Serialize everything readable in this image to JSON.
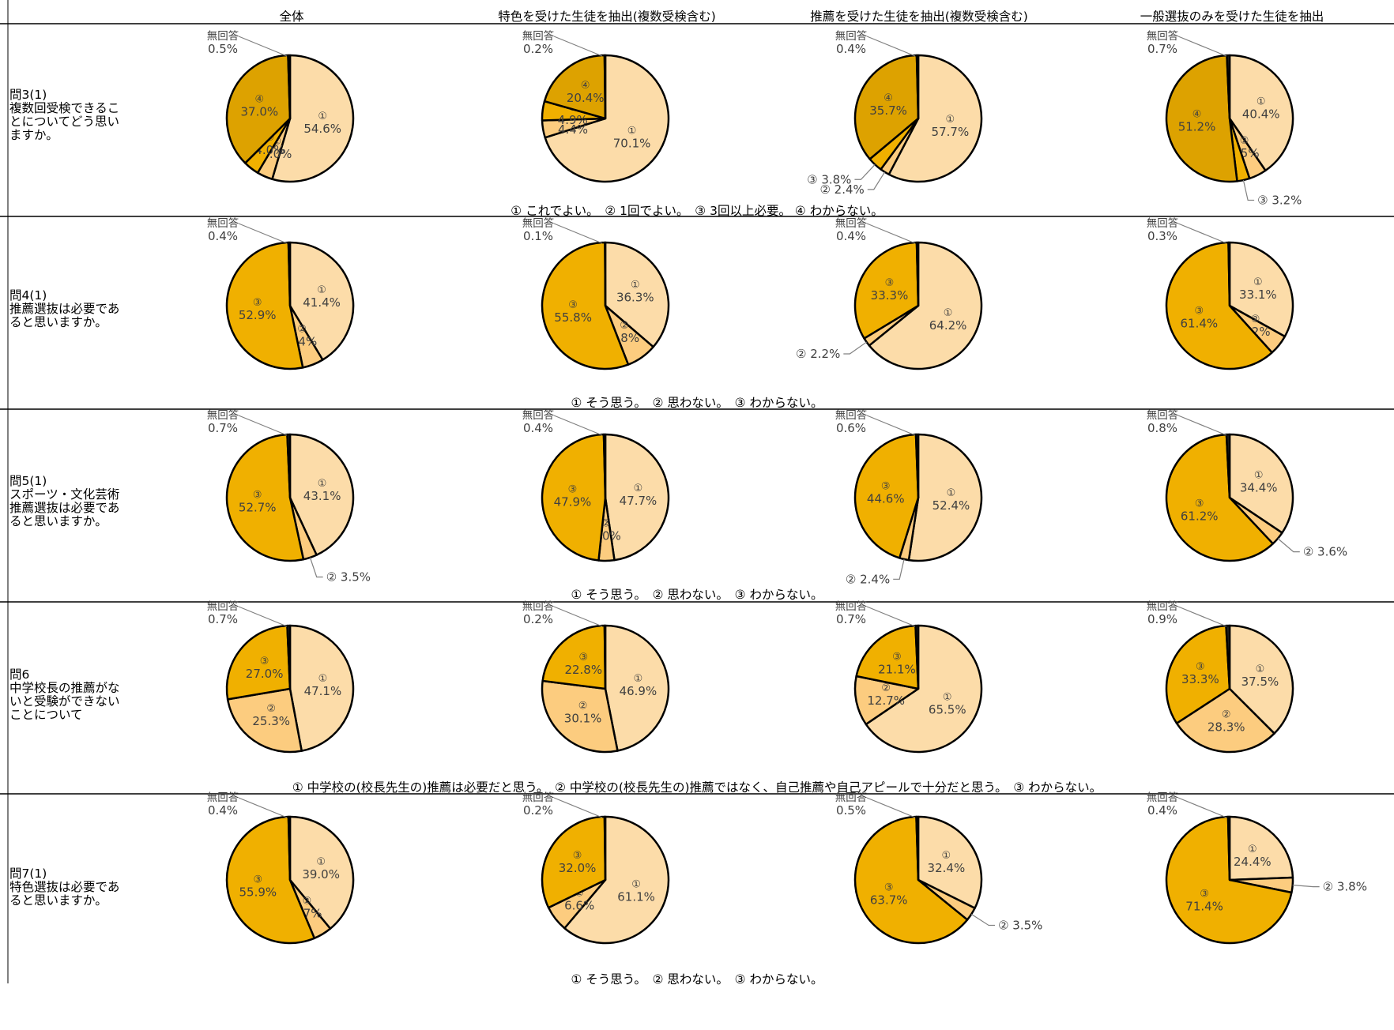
{
  "colors": {
    "opt1": "#FCDCA9",
    "opt2": "#FCCC7F",
    "opt3": "#F0B000",
    "opt4": "#DDA200",
    "noanswer": "#222222"
  },
  "column_headers": [
    "全体",
    "特色を受けた生徒を抽出(複数受検含む)",
    "推薦を受けた生徒を抽出(複数受検含む)",
    "一般選抜のみを受けた生徒を抽出"
  ],
  "rows": [
    {
      "label": "問3(1)\n複数回受検できるこ\nとについてどう思い\nますか。",
      "legend": "① これでよい。　② 1回でよい。　③ 3回以上必要。 ④ わからない。"
    },
    {
      "label": "問4(1)\n推薦選抜は必要であ\nると思いますか。",
      "legend": "① そう思う。　② 思わない。　③ わからない。"
    },
    {
      "label": "問5(1)\nスポーツ・文化芸術\n推薦選抜は必要であ\nると思いますか。",
      "legend": "① そう思う。　② 思わない。　③ わからない。"
    },
    {
      "label": "問6\n中学校長の推薦がな\nいと受験ができない\nことについて",
      "legend": "① 中学校の(校長先生の)推薦は必要だと思う。　② 中学校の(校長先生の)推薦ではなく、自己推薦や自己アピールで十分だと思う。　③ わからない。"
    },
    {
      "label": "問7(1)\n特色選抜は必要であ\nると思いますか。",
      "legend": "① そう思う。　② 思わない。　③ わからない。"
    }
  ],
  "chart_data": [
    {
      "type": "pie",
      "question": "問3(1)",
      "group": "全体",
      "categories": [
        "①",
        "②",
        "③",
        "④",
        "無回答"
      ],
      "values": [
        54.6,
        4.0,
        4.0,
        37.0,
        0.5
      ],
      "labels": [
        "54.6%",
        "4.0%",
        "4.0%",
        "37.0%",
        "0.5%"
      ]
    },
    {
      "type": "pie",
      "question": "問3(1)",
      "group": "特色を受けた生徒を抽出(複数受検含む)",
      "categories": [
        "①",
        "②",
        "③",
        "④",
        "無回答"
      ],
      "values": [
        70.1,
        4.4,
        4.9,
        20.4,
        0.2
      ],
      "labels": [
        "70.1%",
        "4.4%",
        "4.9%",
        "20.4%",
        "0.2%"
      ]
    },
    {
      "type": "pie",
      "question": "問3(1)",
      "group": "推薦を受けた生徒を抽出(複数受検含む)",
      "categories": [
        "①",
        "②",
        "③",
        "④",
        "無回答"
      ],
      "values": [
        57.7,
        2.4,
        3.8,
        35.7,
        0.4
      ],
      "labels": [
        "57.7%",
        "2.4%",
        "3.8%",
        "35.7%",
        "0.4%"
      ]
    },
    {
      "type": "pie",
      "question": "問3(1)",
      "group": "一般選抜のみを受けた生徒を抽出",
      "categories": [
        "①",
        "②",
        "③",
        "④",
        "無回答"
      ],
      "values": [
        40.4,
        4.5,
        3.2,
        51.2,
        0.7
      ],
      "labels": [
        "40.4%",
        "4.5%",
        "3.2%",
        "51.2%",
        "0.7%"
      ]
    },
    {
      "type": "pie",
      "question": "問4(1)",
      "group": "全体",
      "categories": [
        "①",
        "②",
        "③",
        "無回答"
      ],
      "values": [
        41.4,
        5.4,
        52.9,
        0.4
      ],
      "labels": [
        "41.4%",
        "5.4%",
        "52.9%",
        "0.4%"
      ]
    },
    {
      "type": "pie",
      "question": "問4(1)",
      "group": "特色を受けた生徒を抽出(複数受検含む)",
      "categories": [
        "①",
        "②",
        "③",
        "無回答"
      ],
      "values": [
        36.3,
        7.8,
        55.8,
        0.1
      ],
      "labels": [
        "36.3%",
        "7.8%",
        "55.8%",
        "0.1%"
      ]
    },
    {
      "type": "pie",
      "question": "問4(1)",
      "group": "推薦を受けた生徒を抽出(複数受検含む)",
      "categories": [
        "①",
        "②",
        "③",
        "無回答"
      ],
      "values": [
        64.2,
        2.2,
        33.3,
        0.4
      ],
      "labels": [
        "64.2%",
        "2.2%",
        "33.3%",
        "0.4%"
      ]
    },
    {
      "type": "pie",
      "question": "問4(1)",
      "group": "一般選抜のみを受けた生徒を抽出",
      "categories": [
        "①",
        "②",
        "③",
        "無回答"
      ],
      "values": [
        33.1,
        5.2,
        61.4,
        0.3
      ],
      "labels": [
        "33.1%",
        "5.2%",
        "61.4%",
        "0.3%"
      ]
    },
    {
      "type": "pie",
      "question": "問5(1)",
      "group": "全体",
      "categories": [
        "①",
        "②",
        "③",
        "無回答"
      ],
      "values": [
        43.1,
        3.5,
        52.7,
        0.7
      ],
      "labels": [
        "43.1%",
        "3.5%",
        "52.7%",
        "0.7%"
      ]
    },
    {
      "type": "pie",
      "question": "問5(1)",
      "group": "特色を受けた生徒を抽出(複数受検含む)",
      "categories": [
        "①",
        "②",
        "③",
        "無回答"
      ],
      "values": [
        47.7,
        4.0,
        47.9,
        0.4
      ],
      "labels": [
        "47.7%",
        "4.0%",
        "47.9%",
        "0.4%"
      ]
    },
    {
      "type": "pie",
      "question": "問5(1)",
      "group": "推薦を受けた生徒を抽出(複数受検含む)",
      "categories": [
        "①",
        "②",
        "③",
        "無回答"
      ],
      "values": [
        52.4,
        2.4,
        44.6,
        0.6
      ],
      "labels": [
        "52.4%",
        "2.4%",
        "44.6%",
        "0.6%"
      ]
    },
    {
      "type": "pie",
      "question": "問5(1)",
      "group": "一般選抜のみを受けた生徒を抽出",
      "categories": [
        "①",
        "②",
        "③",
        "無回答"
      ],
      "values": [
        34.4,
        3.6,
        61.2,
        0.8
      ],
      "labels": [
        "34.4%",
        "3.6%",
        "61.2%",
        "0.8%"
      ]
    },
    {
      "type": "pie",
      "question": "問6",
      "group": "全体",
      "categories": [
        "①",
        "②",
        "③",
        "無回答"
      ],
      "values": [
        47.1,
        25.3,
        27.0,
        0.7
      ],
      "labels": [
        "47.1%",
        "25.3%",
        "27.0%",
        "0.7%"
      ]
    },
    {
      "type": "pie",
      "question": "問6",
      "group": "特色を受けた生徒を抽出(複数受検含む)",
      "categories": [
        "①",
        "②",
        "③",
        "無回答"
      ],
      "values": [
        46.9,
        30.1,
        22.8,
        0.2
      ],
      "labels": [
        "46.9%",
        "30.1%",
        "22.8%",
        "0.2%"
      ]
    },
    {
      "type": "pie",
      "question": "問6",
      "group": "推薦を受けた生徒を抽出(複数受検含む)",
      "categories": [
        "①",
        "②",
        "③",
        "無回答"
      ],
      "values": [
        65.5,
        12.7,
        21.1,
        0.7
      ],
      "labels": [
        "65.5%",
        "12.7%",
        "21.1%",
        "0.7%"
      ]
    },
    {
      "type": "pie",
      "question": "問6",
      "group": "一般選抜のみを受けた生徒を抽出",
      "categories": [
        "①",
        "②",
        "③",
        "無回答"
      ],
      "values": [
        37.5,
        28.3,
        33.3,
        0.9
      ],
      "labels": [
        "37.5%",
        "28.3%",
        "33.3%",
        "0.9%"
      ]
    },
    {
      "type": "pie",
      "question": "問7(1)",
      "group": "全体",
      "categories": [
        "①",
        "②",
        "③",
        "無回答"
      ],
      "values": [
        39.0,
        4.7,
        55.9,
        0.4
      ],
      "labels": [
        "39.0%",
        "4.7%",
        "55.9%",
        "0.4%"
      ]
    },
    {
      "type": "pie",
      "question": "問7(1)",
      "group": "特色を受けた生徒を抽出(複数受検含む)",
      "categories": [
        "①",
        "②",
        "③",
        "無回答"
      ],
      "values": [
        61.1,
        6.6,
        32.0,
        0.2
      ],
      "labels": [
        "61.1%",
        "6.6%",
        "32.0%",
        "0.2%"
      ]
    },
    {
      "type": "pie",
      "question": "問7(1)",
      "group": "推薦を受けた生徒を抽出(複数受検含む)",
      "categories": [
        "①",
        "②",
        "③",
        "無回答"
      ],
      "values": [
        32.4,
        3.5,
        63.7,
        0.5
      ],
      "labels": [
        "32.4%",
        "3.5%",
        "63.7%",
        "0.5%"
      ]
    },
    {
      "type": "pie",
      "question": "問7(1)",
      "group": "一般選抜のみを受けた生徒を抽出",
      "categories": [
        "①",
        "②",
        "③",
        "無回答"
      ],
      "values": [
        24.4,
        3.8,
        71.4,
        0.4
      ],
      "labels": [
        "24.4%",
        "3.8%",
        "71.4%",
        "0.4%"
      ]
    }
  ]
}
